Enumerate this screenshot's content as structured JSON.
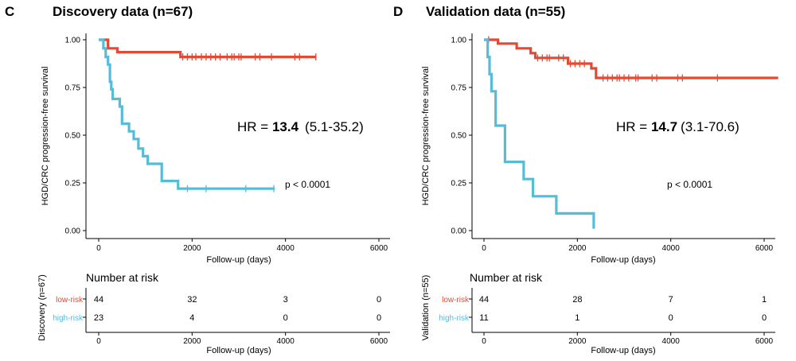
{
  "colors": {
    "low_risk": "#E24A33",
    "high_risk": "#56BCD8"
  },
  "panels": [
    {
      "letter": "C",
      "title": "Discovery data (n=67)",
      "hr_prefix": "HR = ",
      "hr_value": "13.4",
      "hr_ci": "(5.1-35.2)",
      "p_text": "p < 0.0001",
      "risk_title": "Number at risk",
      "risk_ylabel": "Discovery (n=67)",
      "risk_labels": [
        "low-risk",
        "high-risk"
      ],
      "risk_counts": [
        [
          "44",
          "32",
          "3",
          "0"
        ],
        [
          "23",
          "4",
          "0",
          "0"
        ]
      ]
    },
    {
      "letter": "D",
      "title": "Validation data (n=55)",
      "hr_prefix": "HR = ",
      "hr_value": "14.7",
      "hr_ci": "(3.1-70.6)",
      "p_text": "p < 0.0001",
      "risk_title": "Number at risk",
      "risk_ylabel": "Validation (n=55)",
      "risk_labels": [
        "low-risk",
        "high-risk"
      ],
      "risk_counts": [
        [
          "44",
          "28",
          "7",
          "1"
        ],
        [
          "11",
          "1",
          "0",
          "0"
        ]
      ]
    }
  ],
  "chart_data": [
    {
      "type": "line",
      "title": "Discovery data (n=67)",
      "xlabel": "Follow-up (days)",
      "ylabel": "HGD/CRC progression-free survival",
      "xlim": [
        0,
        6000
      ],
      "ylim": [
        0,
        1
      ],
      "x_ticks": [
        "0",
        "2000",
        "4000",
        "6000"
      ],
      "y_ticks": [
        "0.00",
        "0.25",
        "0.50",
        "0.75",
        "1.00"
      ],
      "series": [
        {
          "name": "low-risk",
          "steps": [
            [
              0,
              1.0
            ],
            [
              200,
              1.0
            ],
            [
              200,
              0.955
            ],
            [
              400,
              0.955
            ],
            [
              400,
              0.935
            ],
            [
              1750,
              0.935
            ],
            [
              1750,
              0.91
            ],
            [
              4650,
              0.91
            ]
          ],
          "censors": [
            1800,
            1900,
            2000,
            2080,
            2200,
            2300,
            2400,
            2500,
            2600,
            2750,
            2850,
            2900,
            3000,
            3050,
            3350,
            3450,
            3700,
            4200,
            4300,
            4650
          ]
        },
        {
          "name": "high-risk",
          "steps": [
            [
              0,
              1.0
            ],
            [
              100,
              1.0
            ],
            [
              100,
              0.955
            ],
            [
              150,
              0.955
            ],
            [
              150,
              0.91
            ],
            [
              200,
              0.91
            ],
            [
              200,
              0.87
            ],
            [
              240,
              0.87
            ],
            [
              240,
              0.78
            ],
            [
              270,
              0.78
            ],
            [
              270,
              0.74
            ],
            [
              300,
              0.74
            ],
            [
              300,
              0.69
            ],
            [
              450,
              0.69
            ],
            [
              450,
              0.65
            ],
            [
              500,
              0.65
            ],
            [
              500,
              0.56
            ],
            [
              650,
              0.56
            ],
            [
              650,
              0.52
            ],
            [
              750,
              0.52
            ],
            [
              750,
              0.48
            ],
            [
              850,
              0.48
            ],
            [
              850,
              0.43
            ],
            [
              950,
              0.43
            ],
            [
              950,
              0.39
            ],
            [
              1050,
              0.39
            ],
            [
              1050,
              0.35
            ],
            [
              1350,
              0.35
            ],
            [
              1350,
              0.26
            ],
            [
              1700,
              0.26
            ],
            [
              1700,
              0.22
            ],
            [
              3770,
              0.22
            ]
          ],
          "censors": [
            1900,
            2300,
            3150,
            3750
          ]
        }
      ]
    },
    {
      "type": "line",
      "title": "Validation data (n=55)",
      "xlabel": "Follow-up (days)",
      "ylabel": "HGD/CRC progression-free survival",
      "xlim": [
        0,
        6000
      ],
      "ylim": [
        0,
        1
      ],
      "x_ticks": [
        "0",
        "2000",
        "4000",
        "6000"
      ],
      "y_ticks": [
        "0.00",
        "0.25",
        "0.50",
        "0.75",
        "1.00"
      ],
      "series": [
        {
          "name": "low-risk",
          "steps": [
            [
              0,
              1.0
            ],
            [
              300,
              1.0
            ],
            [
              300,
              0.98
            ],
            [
              700,
              0.98
            ],
            [
              700,
              0.955
            ],
            [
              1000,
              0.955
            ],
            [
              1000,
              0.93
            ],
            [
              1100,
              0.93
            ],
            [
              1100,
              0.905
            ],
            [
              1800,
              0.905
            ],
            [
              1800,
              0.875
            ],
            [
              2300,
              0.875
            ],
            [
              2300,
              0.85
            ],
            [
              2400,
              0.85
            ],
            [
              2400,
              0.8
            ],
            [
              6300,
              0.8
            ]
          ],
          "censors": [
            100,
            1150,
            1250,
            1350,
            1400,
            1600,
            1700,
            1850,
            1950,
            2050,
            2150,
            2550,
            2650,
            2750,
            2850,
            2900,
            3000,
            3100,
            3250,
            3300,
            3600,
            3700,
            4150,
            4250,
            5000
          ]
        },
        {
          "name": "high-risk",
          "steps": [
            [
              0,
              1.0
            ],
            [
              80,
              1.0
            ],
            [
              80,
              0.91
            ],
            [
              120,
              0.91
            ],
            [
              120,
              0.82
            ],
            [
              160,
              0.82
            ],
            [
              160,
              0.73
            ],
            [
              250,
              0.73
            ],
            [
              250,
              0.55
            ],
            [
              450,
              0.55
            ],
            [
              450,
              0.36
            ],
            [
              850,
              0.36
            ],
            [
              850,
              0.27
            ],
            [
              1050,
              0.27
            ],
            [
              1050,
              0.18
            ],
            [
              1550,
              0.18
            ],
            [
              1550,
              0.09
            ],
            [
              2350,
              0.09
            ],
            [
              2350,
              0.01
            ]
          ],
          "censors": []
        }
      ]
    }
  ]
}
